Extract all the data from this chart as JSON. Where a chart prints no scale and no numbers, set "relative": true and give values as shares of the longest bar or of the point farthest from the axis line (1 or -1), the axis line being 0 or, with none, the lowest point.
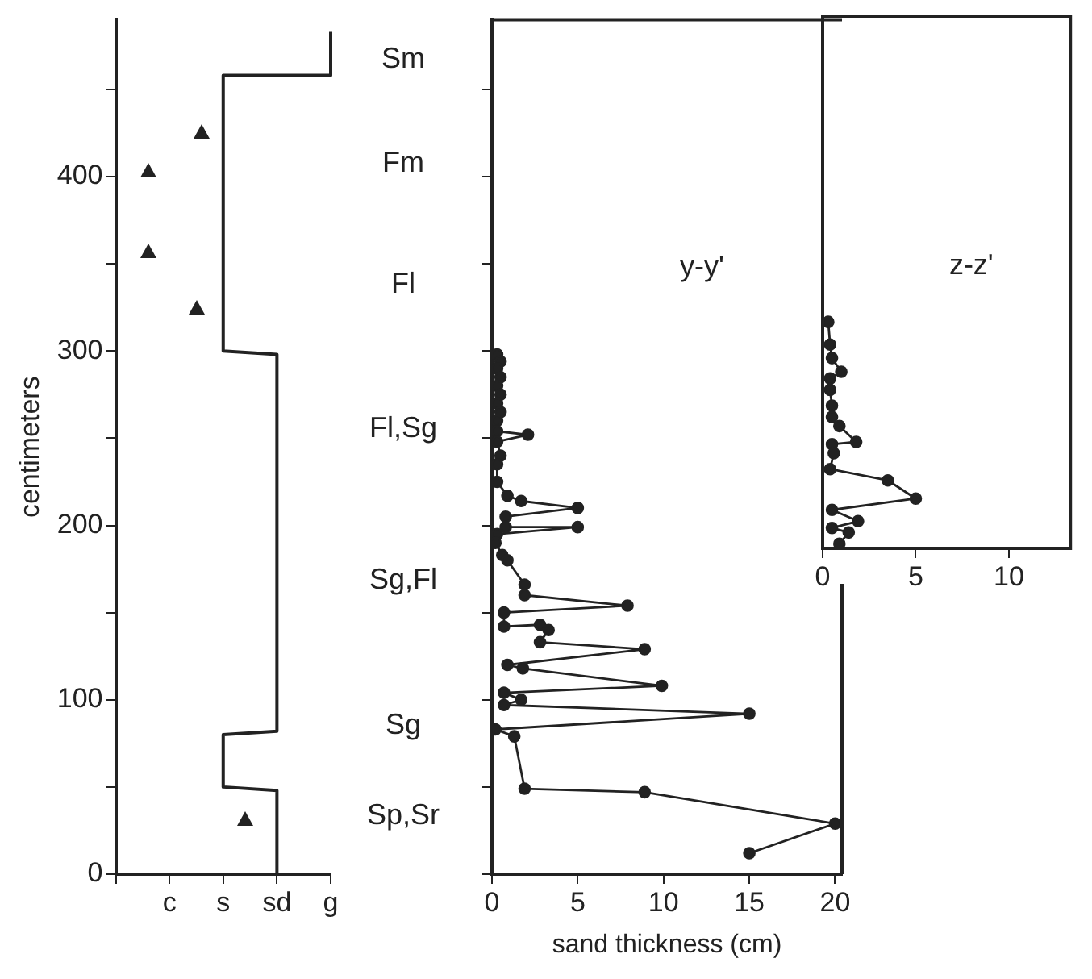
{
  "chart_data": [
    {
      "type": "line",
      "ylabel": "centimeters",
      "categories": [
        null,
        "c",
        "s",
        "sd",
        "g"
      ],
      "ylim": [
        0,
        490
      ],
      "yticks": [
        0,
        {
          "value": 50,
          "label": null
        },
        100,
        {
          "value": 150,
          "label": null
        },
        200,
        {
          "value": 250,
          "label": null
        },
        300,
        {
          "value": 350,
          "label": null
        },
        400,
        {
          "value": 450,
          "label": null
        }
      ],
      "marker": "none",
      "grid": false,
      "series": [
        {
          "color": "#222222",
          "x": [
            "sd",
            "sd",
            "s",
            "s",
            "sd",
            "sd",
            "s",
            "s",
            "g",
            "g"
          ],
          "values": [
            0,
            48,
            50,
            80,
            82,
            298,
            300,
            458,
            458,
            483
          ]
        }
      ],
      "annotations": [
        "Sm",
        "Fm",
        "Fl",
        "Fl,Sg",
        "Sg,Fl",
        "Sg",
        "Sp,Sr"
      ]
    },
    {
      "type": "line",
      "title": "y-y'",
      "xlabel": "sand thickness (cm)",
      "xlim": [
        0,
        20.4
      ],
      "xticks": [
        0,
        5,
        10,
        15,
        20
      ],
      "ylim": [
        0,
        490
      ],
      "yticks": [
        {
          "value": 0,
          "label": null
        },
        {
          "value": 50,
          "label": null
        },
        {
          "value": 100,
          "label": null
        },
        {
          "value": 150,
          "label": null
        },
        {
          "value": 200,
          "label": null
        },
        {
          "value": 250,
          "label": null
        },
        {
          "value": 300,
          "label": null
        },
        {
          "value": 350,
          "label": null
        },
        {
          "value": 400,
          "label": null
        },
        {
          "value": 450,
          "label": null
        }
      ],
      "tick_labels": "x",
      "marker": "circle",
      "grid": false,
      "series": [
        {
          "color": "#222222",
          "x": [
            0.3,
            0.5,
            0.3,
            0.5,
            0.3,
            0.5,
            0.3,
            0.5,
            0.3,
            0.3,
            2.1,
            0.3,
            0.5,
            0.3,
            0.3,
            0.9,
            1.7,
            5.0,
            0.8,
            0.8,
            5.0,
            0.3,
            0.2,
            0.6,
            0.9,
            1.9,
            1.9,
            7.9,
            0.7,
            0.7,
            2.8,
            3.3,
            2.8,
            8.9,
            0.9,
            1.8,
            9.9,
            0.7,
            1.7,
            0.7,
            15,
            0.2,
            1.3,
            1.9,
            8.9,
            20,
            15
          ],
          "values": [
            298,
            294,
            290,
            285,
            280,
            275,
            270,
            265,
            260,
            254,
            252,
            248,
            240,
            235,
            225,
            217,
            214,
            210,
            205,
            199,
            199,
            195,
            190,
            183,
            180,
            166,
            160,
            154,
            150,
            142,
            143,
            140,
            133,
            129,
            120,
            118,
            108,
            104,
            100,
            97,
            92,
            83,
            79,
            49,
            47,
            29,
            12
          ]
        }
      ]
    },
    {
      "type": "line",
      "title": "z-z'",
      "xlim": [
        0,
        13.3
      ],
      "xticks": [
        0,
        5,
        10
      ],
      "relative": true,
      "tick_labels": "x",
      "marker": "circle",
      "grid": false,
      "series": [
        {
          "color": "#222222",
          "x": [
            0.3,
            0.4,
            0.5,
            1.0,
            0.4,
            0.4,
            0.5,
            0.5,
            0.9,
            1.8,
            0.5,
            0.6,
            0.4,
            3.5,
            5.0,
            0.5,
            1.9,
            0.5,
            1.4,
            0.9
          ],
          "values": [
            1.0,
            0.9,
            0.84,
            0.78,
            0.75,
            0.7,
            0.63,
            0.58,
            0.54,
            0.47,
            0.46,
            0.42,
            0.35,
            0.3,
            0.22,
            0.17,
            0.12,
            0.09,
            0.07,
            0.02
          ]
        }
      ]
    }
  ]
}
